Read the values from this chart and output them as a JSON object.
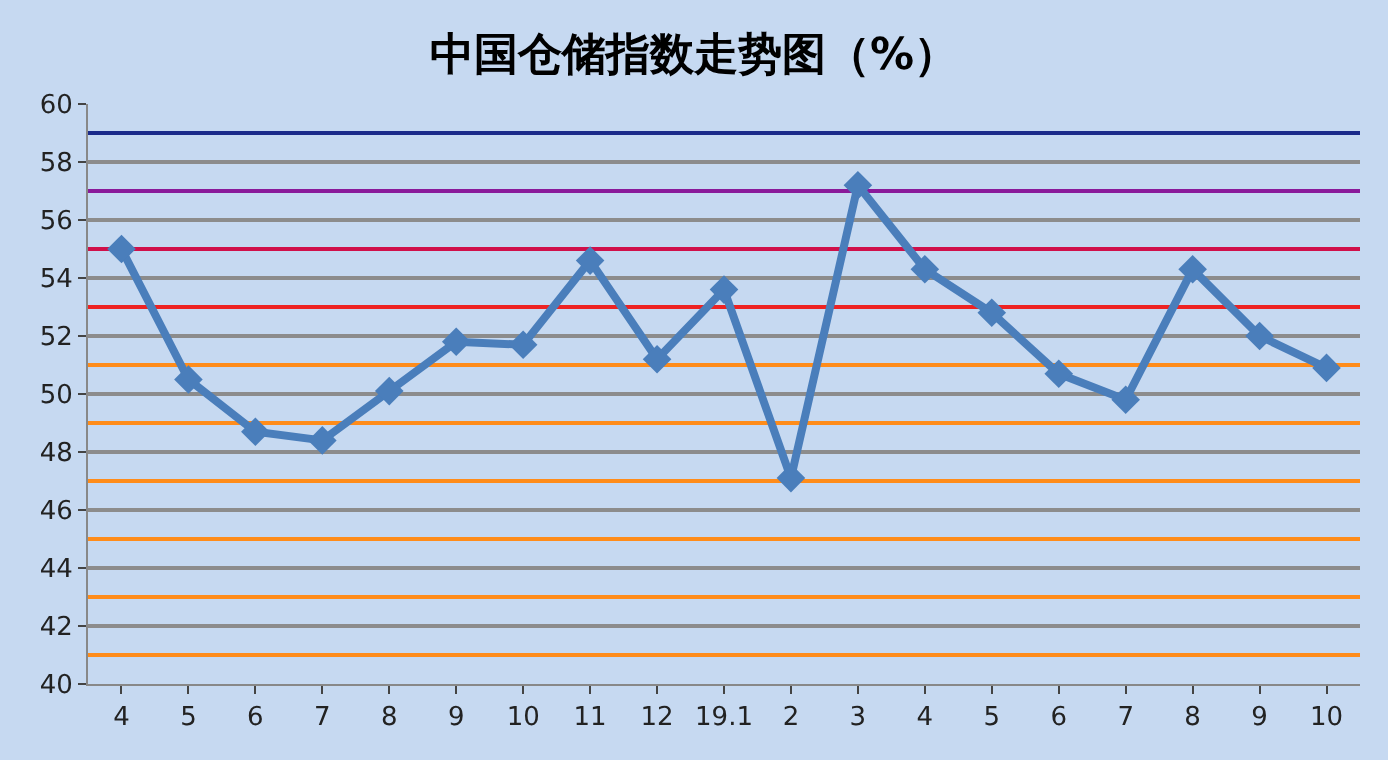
{
  "chart_data": {
    "type": "line",
    "title": "中国仓储指数走势图（%）",
    "categories": [
      "4",
      "5",
      "6",
      "7",
      "8",
      "9",
      "10",
      "11",
      "12",
      "19.1",
      "2",
      "3",
      "4",
      "5",
      "6",
      "7",
      "8",
      "9",
      "10"
    ],
    "series": [
      {
        "color": "#4a7ebb",
        "values": [
          55.0,
          50.5,
          48.7,
          48.4,
          50.1,
          51.8,
          51.7,
          54.6,
          51.2,
          53.6,
          47.1,
          57.2,
          54.3,
          52.8,
          50.7,
          49.8,
          54.3,
          52.0,
          50.9
        ]
      }
    ],
    "ylim": [
      40,
      60
    ],
    "yticks": [
      40,
      42,
      44,
      46,
      48,
      50,
      52,
      54,
      56,
      58,
      60
    ],
    "grid": "y",
    "marker": "diamond",
    "line_style": "solid",
    "ref_lines": [
      {
        "axis": "y",
        "value": 41,
        "color": "#ff8c1a"
      },
      {
        "axis": "y",
        "value": 43,
        "color": "#ff8c1a"
      },
      {
        "axis": "y",
        "value": 45,
        "color": "#ff8c1a"
      },
      {
        "axis": "y",
        "value": 47,
        "color": "#ff8c1a"
      },
      {
        "axis": "y",
        "value": 49,
        "color": "#ff8c1a"
      },
      {
        "axis": "y",
        "value": 51,
        "color": "#ff8c1a"
      },
      {
        "axis": "y",
        "value": 53,
        "color": "#ee2222"
      },
      {
        "axis": "y",
        "value": 55,
        "color": "#d0104a"
      },
      {
        "axis": "y",
        "value": 57,
        "color": "#8a1a9a"
      },
      {
        "axis": "y",
        "value": 59,
        "color": "#1a2a8a"
      }
    ]
  }
}
